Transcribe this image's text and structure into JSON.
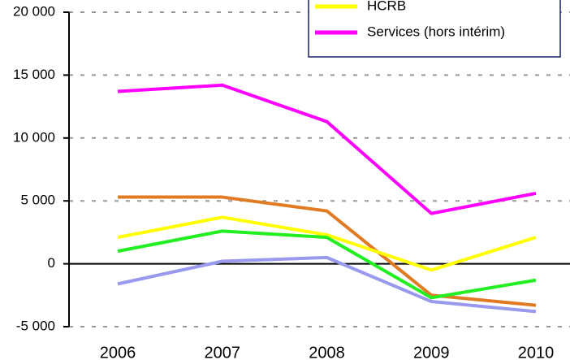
{
  "chart_data": {
    "type": "line",
    "categories": [
      "2006",
      "2007",
      "2008",
      "2009",
      "2010"
    ],
    "series": [
      {
        "color": "#e07b24",
        "values": [
          5300,
          5300,
          4200,
          -2500,
          -3300
        ]
      },
      {
        "name": "HCRB",
        "color": "#ffff00",
        "values": [
          2100,
          3700,
          2300,
          -500,
          2100
        ]
      },
      {
        "color": "#22ee22",
        "values": [
          1000,
          2600,
          2100,
          -2700,
          -1300
        ]
      },
      {
        "color": "#9999ee",
        "values": [
          -1600,
          200,
          500,
          -3000,
          -3800
        ]
      },
      {
        "name": "Services (hors intérim)",
        "color": "#ff00ff",
        "values": [
          13700,
          14200,
          11300,
          4000,
          5600
        ]
      }
    ],
    "ylim": [
      -5000,
      20000
    ],
    "yticks": [
      {
        "value": -5000,
        "label": "-5 000"
      },
      0,
      {
        "value": 5000,
        "label": "5 000"
      },
      {
        "value": 10000,
        "label": "10 000"
      },
      {
        "value": 15000,
        "label": "15 000"
      },
      {
        "value": 20000,
        "label": "20 000"
      }
    ],
    "grid": true
  }
}
